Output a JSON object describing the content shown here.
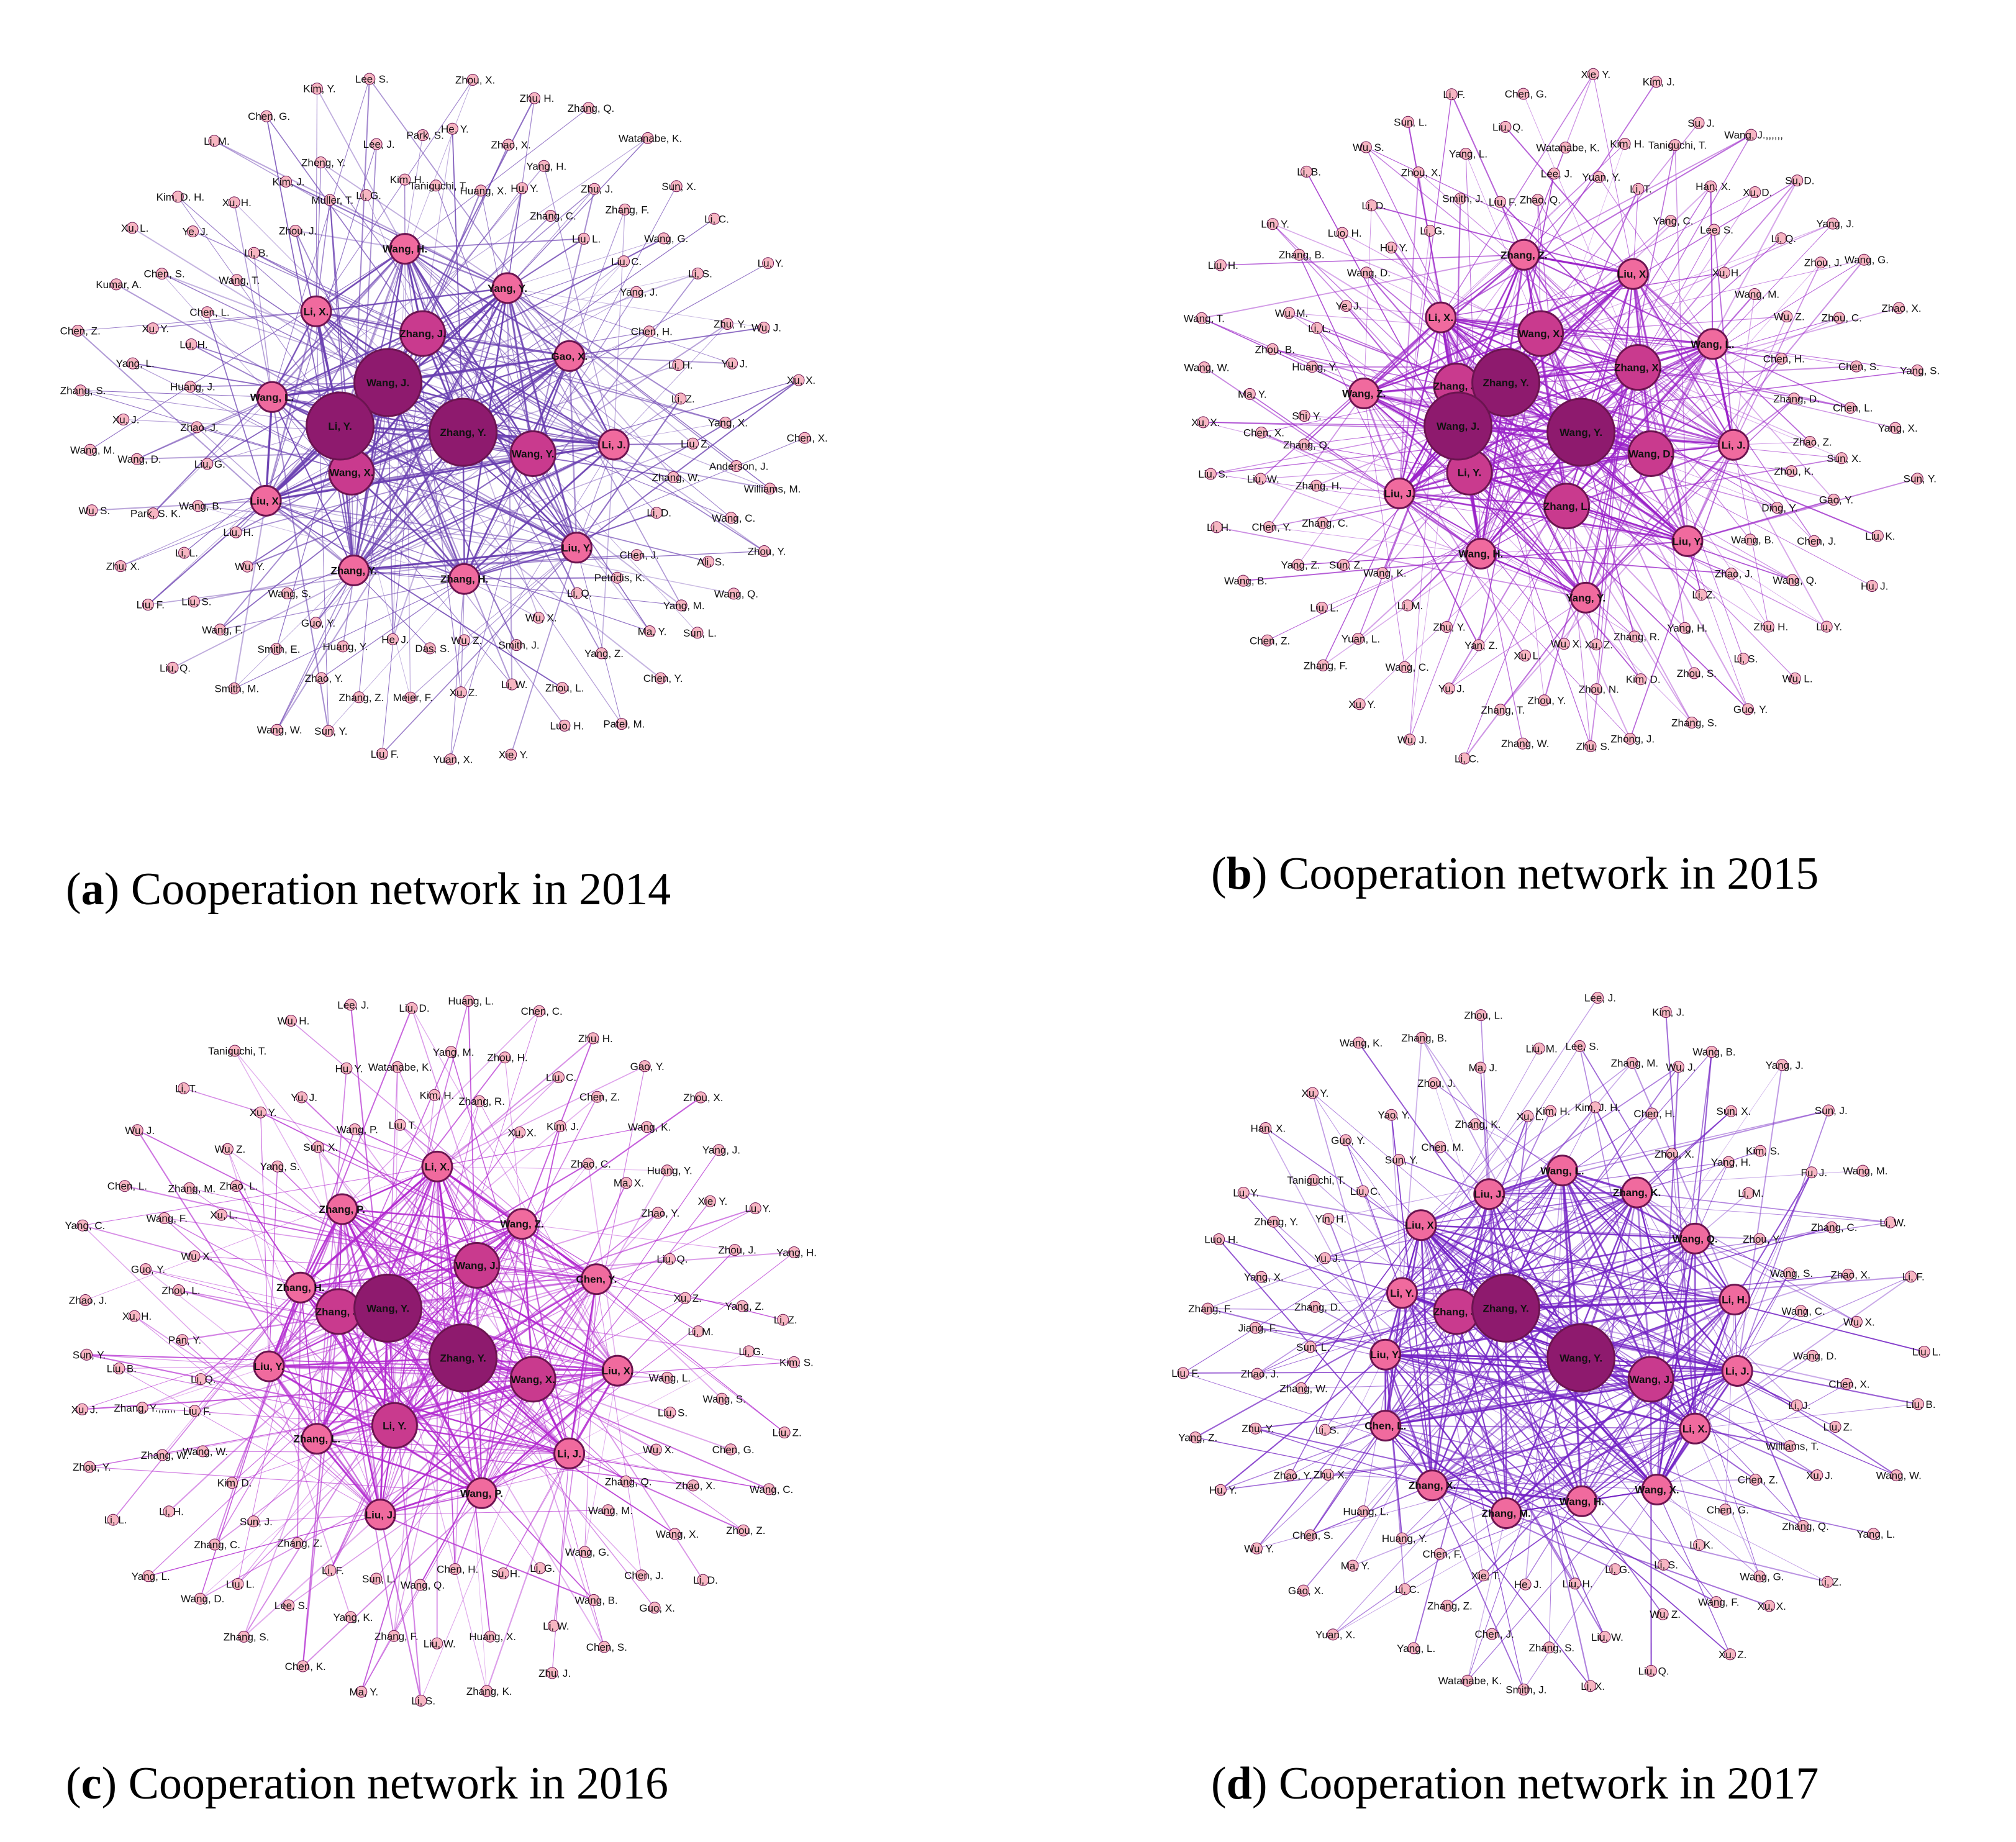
{
  "colors": {
    "edge_2014": "#6a3fb0",
    "edge_2015": "#9a22c8",
    "edge_2016": "#b32ad0",
    "edge_2017": "#7322c4",
    "node_small": "#f7b6c2",
    "node_mid": "#f06a9e",
    "node_large": "#c93a8e",
    "node_hub": "#8e1a6e"
  },
  "panels": [
    {
      "letter": "a",
      "caption": "Cooperation network in 2014",
      "edge_color": "#6a3fb0",
      "hubs": [
        "Wang, J.",
        "Zhang, Y.",
        "Li, Y."
      ],
      "large": [
        "Wang, Y.",
        "Wang, X.",
        "Zhang, J."
      ],
      "mid": [
        "Li, J.",
        "Liu, Y.",
        "Zhang, H.",
        "Zhang, Y.",
        "Liu, X.",
        "Wang, L.",
        "Li, X.",
        "Wang, H.",
        "Yang, Y.",
        "Gao, X."
      ],
      "peripheral": [
        "Taniguchi, T.",
        "He, Y.",
        "Zhou, X.",
        "Huang, X.",
        "Zhao, X.",
        "Zhu, H.",
        "Hu, Y.",
        "Yang, H.",
        "Zhang, Q.",
        "Zhang, C.",
        "Zhu, J.",
        "Watanabe, K.",
        "Liu, L.",
        "Zhang, F.",
        "Sun, X.",
        "Liu, C.",
        "Wang, G.",
        "Li, C.",
        "Yang, J.",
        "Li, S.",
        "Lu, Y.",
        "Chen, H.",
        "Zhu, Y.",
        "Wu, J.",
        "Li, H.",
        "Yu, J.",
        "Xu, X.",
        "Li, Z.",
        "Yang, X.",
        "Chen, X.",
        "Liu, Z.",
        "Anderson, J.",
        "Williams, M.",
        "Zhang, W.",
        "Wang, C.",
        "Zhou, Y.",
        "Li, D.",
        "Ali, S.",
        "Wang, Q.",
        "Chen, J.",
        "Yang, M.",
        "Sun, L.",
        "Petridis, K.",
        "Ma, Y.",
        "Chen, Y.",
        "Li, Q.",
        "Yang, Z.",
        "Patel, M.",
        "Wu, X.",
        "Zhou, L.",
        "Luo, H.",
        "Smith, J.",
        "Li, W.",
        "Xie, Y.",
        "Wu, Z.",
        "Xu, Z.",
        "Yuan, X.",
        "Das, S.",
        "Meier, F.",
        "Liu, F.",
        "He, J.",
        "Zhang, Z.",
        "Sun, Y.",
        "Huang, Y.",
        "Zhao, Y.",
        "Wang, W.",
        "Guo, Y.",
        "Smith, E.",
        "Smith, M.",
        "Wang, S.",
        "Wang, F.",
        "Liu, Q.",
        "Wu, Y.",
        "Liu, S.",
        "Liu, F.",
        "Liu, H.",
        "Li, L.",
        "Zhu, X.",
        "Wang, B.",
        "Park, S. K.",
        "Wu, S.",
        "Liu, G.",
        "Wang, D.",
        "Wang, M.",
        "Zhao, J.",
        "Xu, J.",
        "Zhang, S.",
        "Huang, J.",
        "Yang, L.",
        "Chen, Z.",
        "Lu, H.",
        "Xu, Y.",
        "Kumar, A.",
        "Chen, L.",
        "Chen, S.",
        "Xu, L.",
        "Wang, T.",
        "Ye, J.",
        "Kim, D. H.",
        "Li, B.",
        "Xu, H.",
        "Li, M.",
        "Zhou, J.",
        "Kim, J.",
        "Chen, G.",
        "Muller, T.",
        "Zheng, Y.",
        "Kim, Y.",
        "Li, G.",
        "Lee, J.",
        "Lee, S.",
        "Kim, H.",
        "Park, S."
      ]
    },
    {
      "letter": "b",
      "caption": "Cooperation network in 2015",
      "edge_color": "#9a22c8",
      "hubs": [
        "Zhang, Y.",
        "Wang, Y.",
        "Wang, J."
      ],
      "large": [
        "Wang, D.",
        "Zhang, L.",
        "Li, Y.",
        "Zhang, J.",
        "Wang, X.",
        "Zhang, X."
      ],
      "mid": [
        "Li, J.",
        "Liu, Y.",
        "Yang, Y.",
        "Wang, H.",
        "Liu, J.",
        "Wang, Z.",
        "Li, X.",
        "Zhang, Z.",
        "Liu, X.",
        "Wang, L."
      ],
      "peripheral": [
        "Lee, J.",
        "Watanabe, K.",
        "Xie, Y.",
        "Yuan, Y.",
        "Kim, H.",
        "Kim, J.",
        "Li, T.",
        "Taniguchi, T.",
        "Su, J.",
        "Yang, C.",
        "Han, X.",
        "Wang, J.,,,,,,",
        "Lee, S.",
        "Xu, D.",
        "Su, D.",
        "Xu, H.",
        "Li, Q.",
        "Yang, J.",
        "Wang, M.",
        "Zhou, J.",
        "Wang, G.",
        "Wu, Z.",
        "Zhou, C.",
        "Zhao, X.",
        "Chen, H.",
        "Chen, S.",
        "Yang, S.",
        "Zhang, D.",
        "Chen, L.",
        "Yang, X.",
        "Zhao, Z.",
        "Sun, X.",
        "Sun, Y.",
        "Zhou, K.",
        "Gao, Y.",
        "Liu, K.",
        "Ding, Y.",
        "Chen, J.",
        "Hu, J.",
        "Wang, B.",
        "Wang, Q.",
        "Lu, Y.",
        "Zhao, J.",
        "Zhu, H.",
        "Wu, L.",
        "Li, Z.",
        "Li, S.",
        "Guo, Y.",
        "Yang, H.",
        "Zhou, S.",
        "Zhang, S.",
        "Zhang, R.",
        "Kim, D.",
        "Zhong, J.",
        "Xu, Z.",
        "Zhou, N.",
        "Zhu, S.",
        "Wu, X.",
        "Zhou, Y.",
        "Zhang, W.",
        "Xu, L.",
        "Zhang, T.",
        "Li, C.",
        "Yan, Z.",
        "Yu, J.",
        "Wu, J.",
        "Zhu, Y.",
        "Wang, C.",
        "Xu, Y.",
        "Li, M.",
        "Yuan, L.",
        "Zhang, F.",
        "Wang, K.",
        "Liu, L.",
        "Chen, Z.",
        "Sun, Z.",
        "Yang, Z.",
        "Wang, B.",
        "Zhang, C.",
        "Chen, Y.",
        "Li, H.",
        "Zhang, H.",
        "Liu, W.",
        "Liu, S.",
        "Zhang, Q.",
        "Chen, X.",
        "Xu, X.",
        "Shi, Y.",
        "Ma, Y.",
        "Wang, W.",
        "Huang, Y.",
        "Zhou, B.",
        "Wang, T.",
        "Li, L.",
        "Wu, M.",
        "Liu, H.",
        "Ye, J.",
        "Zhang, B.",
        "Lin, Y.",
        "Wang, D.",
        "Luo, H.",
        "Li, B.",
        "Hu, Y.",
        "Li, D.",
        "Wu, S.",
        "Li, G.",
        "Zhou, X.",
        "Sun, L.",
        "Smith, J.",
        "Yang, L.",
        "Li, F.",
        "Liu, F.",
        "Liu, Q.",
        "Chen, G.",
        "Zhao, Q."
      ]
    },
    {
      "letter": "c",
      "caption": "Cooperation network in 2016",
      "edge_color": "#b32ad0",
      "hubs": [
        "Wang, Y.",
        "Zhang, Y."
      ],
      "large": [
        "Wang, X.",
        "Li, Y.",
        "Zhang, J.",
        "Wang, J."
      ],
      "mid": [
        "Liu, X.",
        "Li, J.",
        "Wang, P.",
        "Liu, J.",
        "Zhang, L.",
        "Liu, Y.",
        "Zhang, H.",
        "Zhang, P.",
        "Li, X.",
        "Wang, Z.",
        "Chen, Y."
      ],
      "peripheral": [
        "Kim, H.",
        "Yang, M.",
        "Huang, L.",
        "Zhang, R.",
        "Zhou, H.",
        "Chen, C.",
        "Xu, X.",
        "Liu, C.",
        "Zhu, H.",
        "Kim, J.",
        "Chen, Z.",
        "Gao, Y.",
        "Zhao, C.",
        "Wang, K.",
        "Zhou, X.",
        "Ma, X.",
        "Huang, Y.",
        "Yang, J.",
        "Zhao, Y.",
        "Xie, Y.",
        "Lu, Y.",
        "Liu, Q.",
        "Zhou, J.",
        "Yang, H.",
        "Xu, Z.",
        "Yang, Z.",
        "Li, Z.",
        "Li, M.",
        "Li, G.",
        "Kim, S.",
        "Wang, L.",
        "Wang, S.",
        "Liu, Z.",
        "Liu, S.",
        "Chen, G.",
        "Wang, C.",
        "Wu, X.",
        "Zhao, X.",
        "Zhou, Z.",
        "Zhang, Q.",
        "Wang, X.",
        "Li, D.",
        "Wang, M.",
        "Chen, J.",
        "Guo, X.",
        "Wang, G.",
        "Wang, B.",
        "Chen, S.",
        "Li, G.",
        "Li, W.",
        "Zhu, J.",
        "Su, H.",
        "Huang, X.",
        "Zhang, K.",
        "Chen, H.",
        "Liu, W.",
        "Li, S.",
        "Wang, Q.",
        "Zhang, F.",
        "Ma, Y.",
        "Sun, L.",
        "Yang, K.",
        "Chen, K.",
        "Li, F.",
        "Lee, S.",
        "Zhang, S.",
        "Zhang, Z.",
        "Liu, L.",
        "Wang, D.",
        "Sun, J.",
        "Zhang, C.",
        "Yang, L.",
        "Kim, D.",
        "Li, H.",
        "Li, L.",
        "Wang, W.",
        "Zhang, W.",
        "Zhou, Y.",
        "Liu, F.",
        "Zhang, Y.,,,,,,",
        "Xu, J.",
        "Li, Q.",
        "Liu, B.",
        "Sun, Y.",
        "Pan, Y.",
        "Xu, H.",
        "Zhao, J.",
        "Zhou, L.",
        "Guo, Y.",
        "Yang, C.",
        "Wu, X.",
        "Wang, F.",
        "Chen, L.",
        "Xu, L.",
        "Zhang, M.",
        "Wu, J.",
        "Zhao, L.",
        "Wu, Z.",
        "Li, T.",
        "Yang, S.",
        "Xu, Y.",
        "Taniguchi, T.",
        "Sun, X.",
        "Yu, J.",
        "Wu, H.",
        "Wang, P.",
        "Hu, Y.",
        "Lee, J.",
        "Liu, T.",
        "Watanabe, K.",
        "Liu, D."
      ]
    },
    {
      "letter": "d",
      "caption": "Cooperation network in 2017",
      "edge_color": "#7322c4",
      "hubs": [
        "Zhang, Y.",
        "Wang, Y."
      ],
      "large": [
        "Wang, J.",
        "Zhang, J."
      ],
      "mid": [
        "Li, J.",
        "Li, X.",
        "Wang, X.",
        "Wang, H.",
        "Zhang, M.",
        "Zhang, X.",
        "Chen, L.",
        "Liu, Y.",
        "Li, Y.",
        "Liu, X.",
        "Liu, J.",
        "Wang, L.",
        "Zhang, K.",
        "Wang, Q.",
        "Li, H."
      ],
      "peripheral": [
        "Kim, H.",
        "Lee, S.",
        "Lee, J.",
        "Kim, J. H.",
        "Zhang, M.",
        "Kim, J.",
        "Chen, H.",
        "Wu, J.",
        "Wang, B.",
        "Zhou, X.",
        "Sun, X.",
        "Yang, J.",
        "Yang, H.",
        "Kim, S.",
        "Sun, J.",
        "Li, M.",
        "Fu, J.",
        "Wang, M.",
        "Zhou, Y.",
        "Zhang, C.",
        "Li, W.",
        "Wang, S.",
        "Zhao, X.",
        "Li, F.",
        "Wang, C.",
        "Wu, X.",
        "Liu, L.",
        "Wang, D.",
        "Chen, X.",
        "Liu, B.",
        "Li, J.",
        "Liu, Z.",
        "Wang, W.",
        "Williams, T.",
        "Xu, J.",
        "Yang, L.",
        "Chen, Z.",
        "Zhang, Q.",
        "Li, Z.",
        "Chen, G.",
        "Wang, G.",
        "Xu, X.",
        "Li, K.",
        "Wang, F.",
        "Xu, Z.",
        "Li, S.",
        "Wu, Z.",
        "Liu, Q.",
        "Li, G.",
        "Liu, W.",
        "Li, X.",
        "Liu, H.",
        "Zhang, S.",
        "Smith, J.",
        "He, J.",
        "Chen, J.",
        "Watanabe, K.",
        "Xie, T.",
        "Zhang, Z.",
        "Yang, L.",
        "Chen, F.",
        "Li, C.",
        "Yuan, X.",
        "Huang, Y.",
        "Ma, Y.",
        "Gao, X.",
        "Huang, L.",
        "Chen, S.",
        "Wu, Y.",
        "Zhu, X.",
        "Zhao, Y.",
        "Hu, Y.",
        "Li, S.",
        "Zhu, Y.",
        "Yang, Z.",
        "Zhang, W.",
        "Zhao, J.",
        "Liu, F.",
        "Sun, L.",
        "Jiang, F.",
        "Zhang, F.",
        "Zhang, D.",
        "Yang, X.",
        "Luo, H.",
        "Yu, J.",
        "Zheng, Y.",
        "Lu, Y.",
        "Yin, H.",
        "Taniguchi, T.",
        "Han, X.",
        "Liu, C.",
        "Guo, Y.",
        "Xu, Y.",
        "Sun, Y.",
        "Yao, Y.",
        "Wang, K.",
        "Chen, M.",
        "Zhou, J.",
        "Zhang, B.",
        "Zhang, K.",
        "Ma, J.",
        "Zhou, L.",
        "Xu, L.",
        "Liu, M."
      ]
    }
  ]
}
